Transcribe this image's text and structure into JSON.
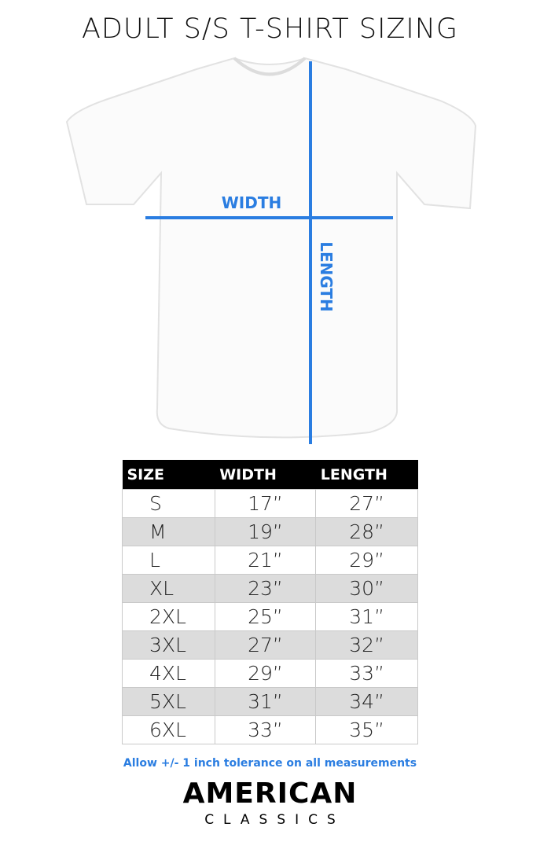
{
  "title": "ADULT S/S T-SHIRT SIZING",
  "diagram": {
    "width_label": "WIDTH",
    "length_label": "LENGTH",
    "line_color": "#2a7de1"
  },
  "table": {
    "headers": [
      "SIZE",
      "WIDTH",
      "LENGTH"
    ],
    "rows": [
      [
        "S",
        "17”",
        "27”"
      ],
      [
        "M",
        "19”",
        "28”"
      ],
      [
        "L",
        "21”",
        "29”"
      ],
      [
        "XL",
        "23”",
        "30”"
      ],
      [
        "2XL",
        "25”",
        "31”"
      ],
      [
        "3XL",
        "27”",
        "32”"
      ],
      [
        "4XL",
        "29”",
        "33”"
      ],
      [
        "5XL",
        "31”",
        "34”"
      ],
      [
        "6XL",
        "33”",
        "35”"
      ]
    ]
  },
  "note": "Allow +/- 1 inch tolerance on all measurements",
  "logo": {
    "line1": "AMERICAN",
    "line2": "CLASSICS"
  }
}
